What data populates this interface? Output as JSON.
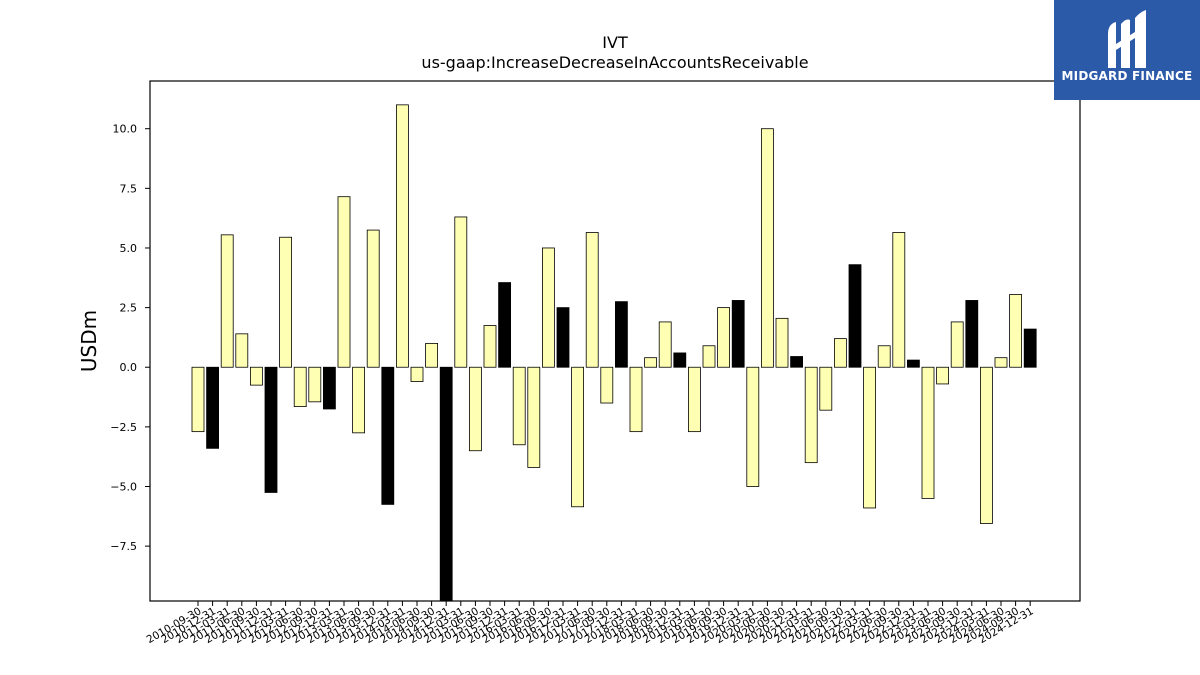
{
  "logo": {
    "text": "MIDGARD FINANCE",
    "color": "#2b5aa8"
  },
  "chart_data": {
    "type": "bar",
    "title": "IVT",
    "subtitle": "us-gaap:IncreaseDecreaseInAccountsReceivable",
    "ylabel": "USDm",
    "xlabel": "",
    "ylim": [
      -9.8,
      12.0
    ],
    "yticks": [
      -7.5,
      -5.0,
      -2.5,
      0.0,
      2.5,
      5.0,
      7.5,
      10.0
    ],
    "colors": {
      "quarter": "#ffffb3",
      "annual": "#000000"
    },
    "categories": [
      "2010-09-30",
      "2010-12-31",
      "2011-03-31",
      "2011-06-30",
      "2011-09-30",
      "2011-12-31",
      "2012-03-31",
      "2012-06-30",
      "2012-09-30",
      "2012-12-31",
      "2013-03-31",
      "2013-06-30",
      "2013-09-30",
      "2013-12-31",
      "2014-03-31",
      "2014-06-30",
      "2014-09-30",
      "2014-12-31",
      "2015-03-31",
      "2015-06-30",
      "2015-09-30",
      "2015-12-31",
      "2016-03-31",
      "2016-06-30",
      "2016-09-30",
      "2016-12-31",
      "2017-03-31",
      "2017-06-30",
      "2017-09-30",
      "2017-12-31",
      "2018-03-31",
      "2018-06-30",
      "2018-09-30",
      "2018-12-31",
      "2019-03-31",
      "2019-06-30",
      "2019-09-30",
      "2019-12-31",
      "2020-03-31",
      "2020-06-30",
      "2020-09-30",
      "2020-12-31",
      "2021-03-31",
      "2021-06-30",
      "2021-09-30",
      "2021-12-31",
      "2022-03-31",
      "2022-06-30",
      "2022-09-30",
      "2022-12-31",
      "2023-03-31",
      "2023-06-30",
      "2023-09-30",
      "2023-12-31",
      "2024-03-31",
      "2024-06-30",
      "2024-09-30",
      "2024-12-31"
    ],
    "values": [
      -2.7,
      -3.4,
      5.55,
      1.4,
      -0.75,
      -5.25,
      5.45,
      -1.65,
      -1.45,
      -1.75,
      7.15,
      -2.75,
      5.75,
      -5.75,
      11.0,
      -0.6,
      1.0,
      -9.8,
      6.3,
      -3.5,
      1.75,
      3.55,
      -3.25,
      -4.2,
      5.0,
      2.5,
      -5.85,
      5.65,
      -1.5,
      2.75,
      -2.7,
      0.4,
      1.9,
      0.6,
      -2.7,
      0.9,
      2.5,
      2.8,
      -5.0,
      10.0,
      2.05,
      0.45,
      -4.0,
      -1.8,
      1.2,
      4.3,
      -5.9,
      0.9,
      5.65,
      0.3,
      -5.5,
      -0.7,
      1.9,
      2.8,
      -6.55,
      0.4,
      3.05,
      1.6
    ],
    "annual": [
      false,
      true,
      false,
      false,
      false,
      true,
      false,
      false,
      false,
      true,
      false,
      false,
      false,
      true,
      false,
      false,
      false,
      true,
      false,
      false,
      false,
      true,
      false,
      false,
      false,
      true,
      false,
      false,
      false,
      true,
      false,
      false,
      false,
      true,
      false,
      false,
      false,
      true,
      false,
      false,
      false,
      true,
      false,
      false,
      false,
      true,
      false,
      false,
      false,
      true,
      false,
      false,
      false,
      true,
      false,
      false,
      false,
      true
    ]
  }
}
